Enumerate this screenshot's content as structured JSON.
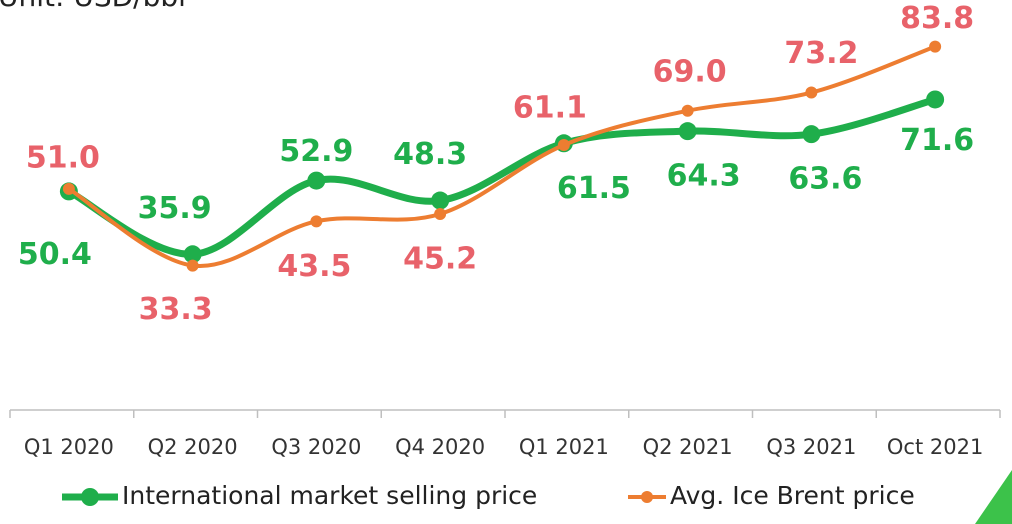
{
  "chart_data": {
    "type": "line",
    "unit_label": "Unit: USD/bbl",
    "categories": [
      "Q1 2020",
      "Q2 2020",
      "Q3 2020",
      "Q4 2020",
      "Q1 2021",
      "Q2 2021",
      "Q3 2021",
      "Oct 2021"
    ],
    "ylim": [
      0,
      95
    ],
    "series": [
      {
        "name": "International market selling price",
        "color": "#1fae4b",
        "label_color": "#1fae4b",
        "values": [
          50.4,
          35.9,
          52.9,
          48.3,
          61.5,
          64.3,
          63.6,
          71.6
        ],
        "value_labels": [
          "50.4",
          "35.9",
          "52.9",
          "48.3",
          "61.5",
          "64.3",
          "63.6",
          "71.6"
        ]
      },
      {
        "name": "Avg. Ice Brent price",
        "color": "#ed7d31",
        "label_color": "#e8626a",
        "values": [
          51.0,
          33.3,
          43.5,
          45.2,
          61.1,
          69.0,
          73.2,
          83.8
        ],
        "value_labels": [
          "51.0",
          "33.3",
          "43.5",
          "45.2",
          "61.1",
          "69.0",
          "73.2",
          "83.8"
        ]
      }
    ]
  }
}
